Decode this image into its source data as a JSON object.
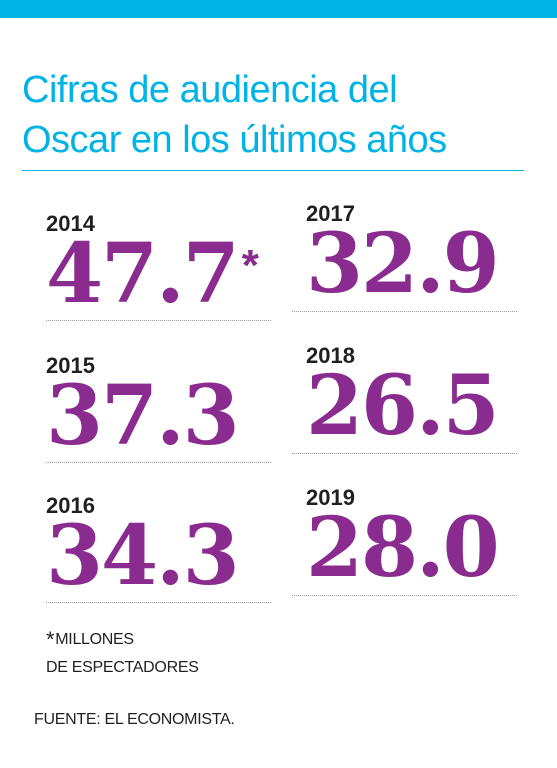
{
  "colors": {
    "accent": "#00b3e6",
    "value": "#8a2c8f",
    "text": "#231f20"
  },
  "title": {
    "line1": "Cifras de audiencia del",
    "line2": "Oscar en los últimos años"
  },
  "chart_data": {
    "type": "table",
    "unit_marker": "*",
    "entries": [
      {
        "year": "2014",
        "value": "47.7"
      },
      {
        "year": "2015",
        "value": "37.3"
      },
      {
        "year": "2016",
        "value": "34.3"
      },
      {
        "year": "2017",
        "value": "32.9"
      },
      {
        "year": "2018",
        "value": "26.5"
      },
      {
        "year": "2019",
        "value": "28.0"
      }
    ]
  },
  "note": {
    "asterisk": "*",
    "line1": "MILLONES",
    "line2": "DE ESPECTADORES"
  },
  "source": "FUENTE: EL ECONOMISTA."
}
